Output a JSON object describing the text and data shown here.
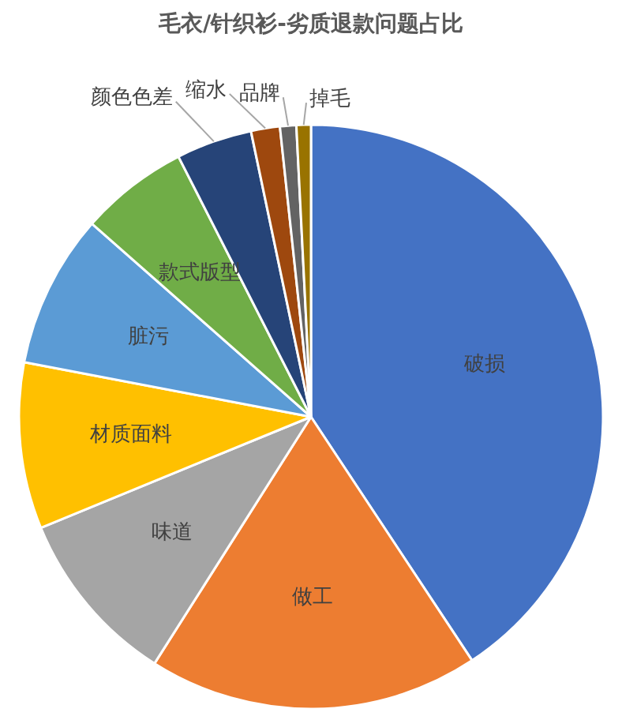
{
  "chart_data": {
    "type": "pie",
    "title": "毛衣/针织衫-劣质退款问题占比",
    "categories": [
      "破损",
      "做工",
      "味道",
      "材质面料",
      "脏污",
      "款式版型",
      "颜色色差",
      "缩水",
      "品牌",
      "掉毛"
    ],
    "values": [
      40.7,
      18.3,
      9.8,
      9.2,
      8.5,
      6.0,
      4.2,
      1.6,
      0.9,
      0.8
    ],
    "colors": [
      "#4472c4",
      "#ed7d31",
      "#a5a5a5",
      "#ffc000",
      "#5b9bd5",
      "#70ad47",
      "#264478",
      "#9e480e",
      "#636363",
      "#997300"
    ],
    "legend": false
  }
}
